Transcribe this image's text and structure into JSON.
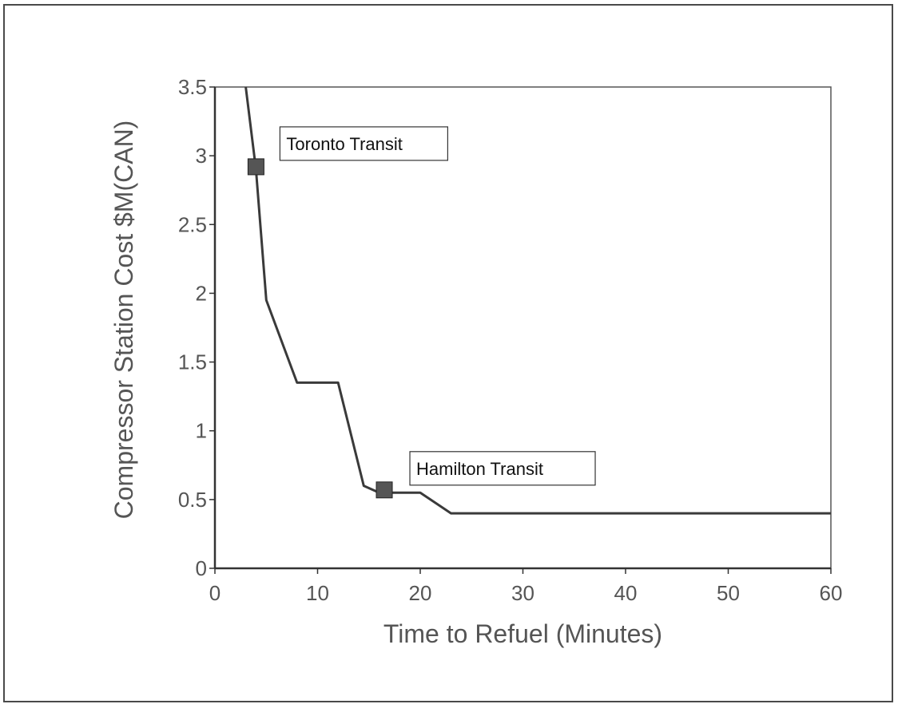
{
  "chart_data": {
    "type": "line",
    "xlabel": "Time to Refuel (Minutes)",
    "ylabel": "Compressor Station Cost $M(CAN)",
    "xlim": [
      0,
      60
    ],
    "ylim": [
      0,
      3.5
    ],
    "x_ticks": [
      "0",
      "10",
      "20",
      "30",
      "40",
      "50",
      "60"
    ],
    "y_ticks": [
      "0",
      "0.5",
      "1",
      "1.5",
      "2",
      "2.5",
      "3",
      "3.5"
    ],
    "x_tick_values": [
      0,
      10,
      20,
      30,
      40,
      50,
      60
    ],
    "y_tick_values": [
      0,
      0.5,
      1,
      1.5,
      2,
      2.5,
      3,
      3.5
    ],
    "grid": false,
    "series": [
      {
        "x": [
          3,
          4,
          5,
          8,
          12,
          14.5,
          16,
          20,
          23,
          60
        ],
        "y": [
          3.5,
          2.9,
          1.95,
          1.35,
          1.35,
          0.6,
          0.55,
          0.55,
          0.4,
          0.4
        ]
      }
    ],
    "markers": [
      {
        "label": "Toronto Transit",
        "x": 4,
        "y": 2.92
      },
      {
        "label": "Hamilton Transit",
        "x": 16.5,
        "y": 0.57
      }
    ]
  }
}
